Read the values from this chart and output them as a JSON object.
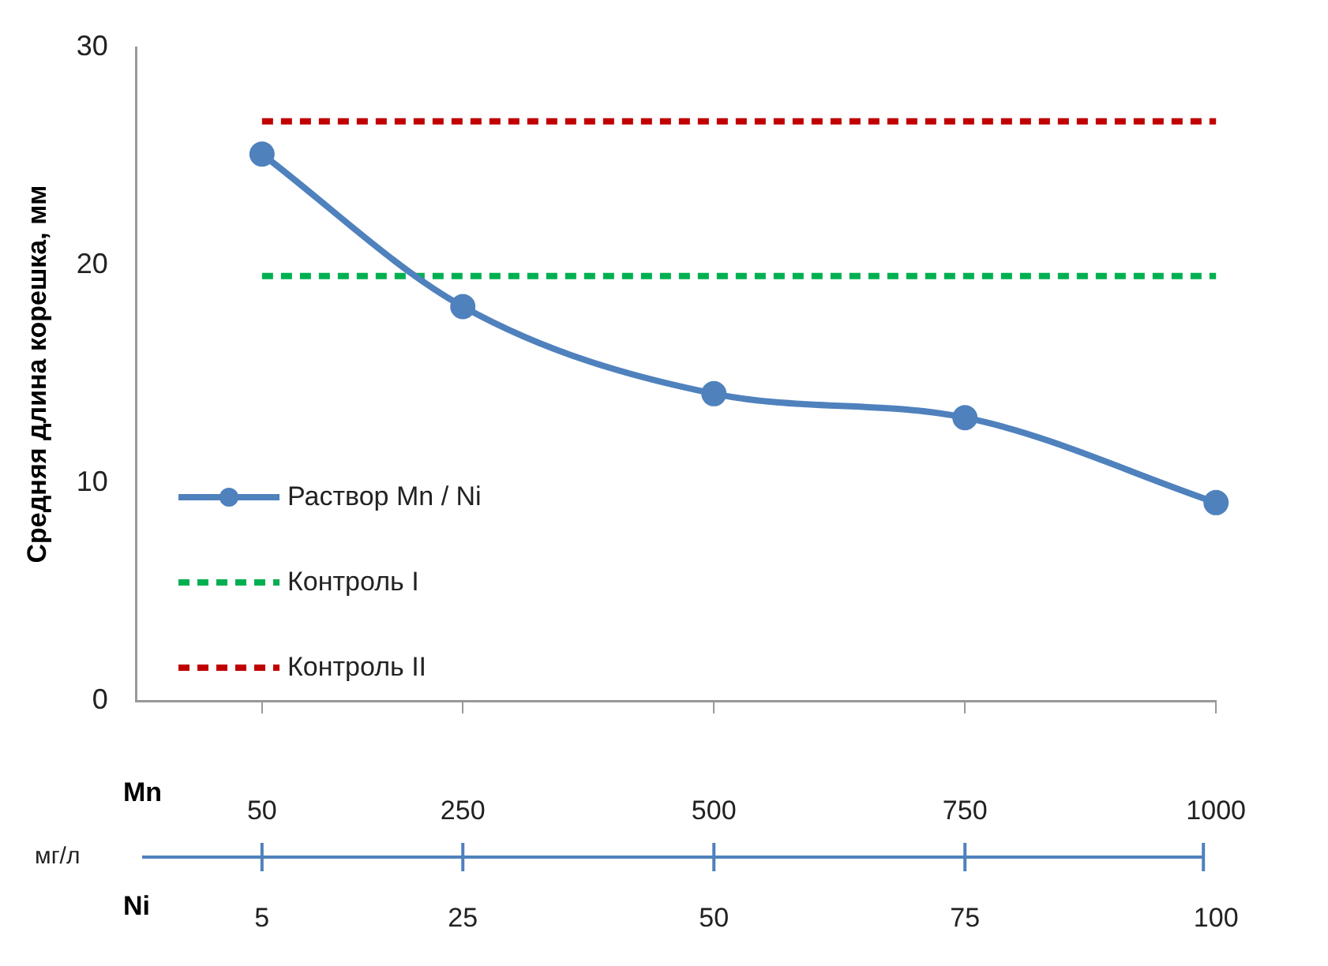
{
  "chart_data": {
    "type": "line",
    "ylabel": "Средняя длина корешка, мм",
    "xlabel": "Mn",
    "x2label": "Ni",
    "annotations": [
      "мг/л"
    ],
    "x": [
      50,
      250,
      500,
      750,
      1000
    ],
    "xlim": [
      -75,
      1000
    ],
    "xticks": [
      50,
      250,
      500,
      750,
      1000
    ],
    "x2lim": [
      -7.5,
      100
    ],
    "x2ticks": [
      5,
      25,
      50,
      75,
      100
    ],
    "ylim": [
      0,
      30
    ],
    "yticks": [
      0,
      10,
      20,
      30
    ],
    "grid": false,
    "legend": "left",
    "series": [
      {
        "name": "Раствор Mn / Ni",
        "color": "#4f81bd",
        "values": [
          25.1,
          18.1,
          14.1,
          13.0,
          9.1
        ],
        "marker": "circle",
        "line_style": "solid"
      },
      {
        "name": "Контроль I",
        "color": "#00b050",
        "values": [
          19.5,
          19.5,
          19.5,
          19.5,
          19.5
        ],
        "marker": "none",
        "line_style": "dashed"
      },
      {
        "name": "Контроль II",
        "color": "#c00000",
        "values": [
          26.6,
          26.6,
          26.6,
          26.6,
          26.6
        ],
        "marker": "none",
        "line_style": "dashed"
      }
    ]
  }
}
